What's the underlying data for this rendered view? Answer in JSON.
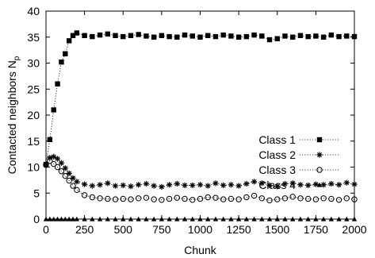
{
  "chart_data": {
    "type": "scatter",
    "xlabel": "Chunk",
    "ylabel": "Contacted neighbors N",
    "ylabel_subscript": "p",
    "xlim": [
      0,
      2000
    ],
    "ylim": [
      0,
      40
    ],
    "xticks": [
      0,
      250,
      500,
      750,
      1000,
      1250,
      1500,
      1750,
      2000
    ],
    "yticks": [
      0,
      5,
      10,
      15,
      20,
      25,
      30,
      35,
      40
    ],
    "grid": false,
    "legend_position": "right",
    "series": [
      {
        "name": "Class 1",
        "marker": "filled-square",
        "line": "dotted",
        "x": [
          0,
          25,
          50,
          75,
          100,
          125,
          150,
          175,
          200,
          250,
          300,
          350,
          400,
          450,
          500,
          550,
          600,
          650,
          700,
          750,
          800,
          850,
          900,
          950,
          1000,
          1050,
          1100,
          1150,
          1200,
          1250,
          1300,
          1350,
          1400,
          1450,
          1500,
          1550,
          1600,
          1650,
          1700,
          1750,
          1800,
          1850,
          1900,
          1950,
          2000
        ],
        "y": [
          10.5,
          15.3,
          21.0,
          26.0,
          30.2,
          31.8,
          34.3,
          35.3,
          35.8,
          35.3,
          35.1,
          35.4,
          35.6,
          35.3,
          35.1,
          35.3,
          35.5,
          35.2,
          35.0,
          35.3,
          35.1,
          35.0,
          35.4,
          35.2,
          35.0,
          35.3,
          35.1,
          35.4,
          35.2,
          35.0,
          35.1,
          35.4,
          35.2,
          34.5,
          34.7,
          35.2,
          35.0,
          35.3,
          35.1,
          35.2,
          35.0,
          35.4,
          35.1,
          35.2,
          35.1
        ]
      },
      {
        "name": "Class 2",
        "marker": "asterisk",
        "line": "dotted",
        "x": [
          0,
          25,
          50,
          75,
          100,
          125,
          150,
          175,
          200,
          250,
          300,
          350,
          400,
          450,
          500,
          550,
          600,
          650,
          700,
          750,
          800,
          850,
          900,
          950,
          1000,
          1050,
          1100,
          1150,
          1200,
          1250,
          1300,
          1350,
          1400,
          1450,
          1500,
          1550,
          1600,
          1650,
          1700,
          1750,
          1800,
          1850,
          1900,
          1950,
          2000
        ],
        "y": [
          10.6,
          11.8,
          12.0,
          11.6,
          10.8,
          9.8,
          8.8,
          7.9,
          7.2,
          6.7,
          6.4,
          6.6,
          6.9,
          6.4,
          6.5,
          6.3,
          6.6,
          6.8,
          6.4,
          6.2,
          6.6,
          6.8,
          6.5,
          6.5,
          6.6,
          6.4,
          6.9,
          6.5,
          6.6,
          6.4,
          6.8,
          7.2,
          6.9,
          6.5,
          6.3,
          6.8,
          6.9,
          6.6,
          6.5,
          6.7,
          6.6,
          6.8,
          6.6,
          7.0,
          6.7
        ]
      },
      {
        "name": "Class 3",
        "marker": "open-circle",
        "line": "dotted",
        "x": [
          0,
          25,
          50,
          75,
          100,
          125,
          150,
          175,
          200,
          250,
          300,
          350,
          400,
          450,
          500,
          550,
          600,
          650,
          700,
          750,
          800,
          850,
          900,
          950,
          1000,
          1050,
          1100,
          1150,
          1200,
          1250,
          1300,
          1350,
          1400,
          1450,
          1500,
          1550,
          1600,
          1650,
          1700,
          1750,
          1800,
          1850,
          1900,
          1950,
          2000
        ],
        "y": [
          10.4,
          11.2,
          10.6,
          10.0,
          9.2,
          8.3,
          7.4,
          6.4,
          5.6,
          4.6,
          4.2,
          4.0,
          3.9,
          3.8,
          3.9,
          3.8,
          4.0,
          4.1,
          3.8,
          3.7,
          3.9,
          4.1,
          3.9,
          3.7,
          3.9,
          4.2,
          4.1,
          3.8,
          3.9,
          3.8,
          4.2,
          4.5,
          4.0,
          3.6,
          3.8,
          4.0,
          4.3,
          4.0,
          3.9,
          3.8,
          4.0,
          3.9,
          3.7,
          4.0,
          3.8
        ]
      },
      {
        "name": "Class 4",
        "marker": "filled-triangle",
        "line": "dotted",
        "x": [
          0,
          25,
          50,
          75,
          100,
          125,
          150,
          175,
          200,
          250,
          300,
          350,
          400,
          450,
          500,
          550,
          600,
          650,
          700,
          750,
          800,
          850,
          900,
          950,
          1000,
          1050,
          1100,
          1150,
          1200,
          1250,
          1300,
          1350,
          1400,
          1450,
          1500,
          1550,
          1600,
          1650,
          1700,
          1750,
          1800,
          1850,
          1900,
          1950,
          2000
        ],
        "y": [
          0,
          0,
          0,
          0,
          0,
          0,
          0,
          0,
          0,
          0,
          0,
          0,
          0,
          0,
          0,
          0,
          0,
          0,
          0,
          0,
          0,
          0,
          0,
          0,
          0,
          0,
          0,
          0,
          0,
          0,
          0,
          0,
          0,
          0,
          0,
          0,
          0,
          0,
          0,
          0,
          0,
          0,
          0,
          0,
          0
        ]
      }
    ]
  }
}
